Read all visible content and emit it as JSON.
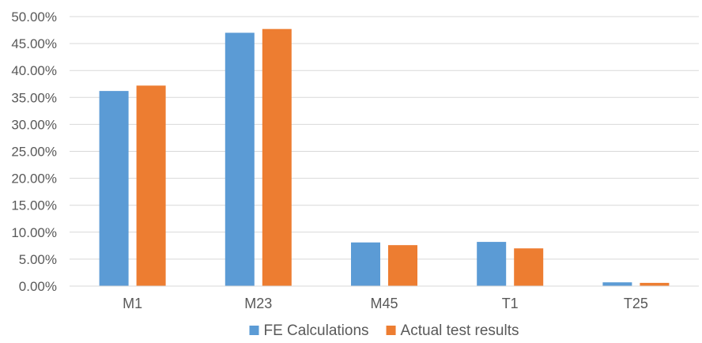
{
  "chart_data": {
    "type": "bar",
    "categories": [
      "M1",
      "M23",
      "M45",
      "T1",
      "T25"
    ],
    "series": [
      {
        "name": "FE Calculations",
        "color": "#5b9bd5",
        "values": [
          36.2,
          47.0,
          8.1,
          8.2,
          0.7
        ]
      },
      {
        "name": "Actual test results",
        "color": "#ed7d31",
        "values": [
          37.2,
          47.7,
          7.6,
          7.0,
          0.6
        ]
      }
    ],
    "y_ticks": [
      "0.00%",
      "5.00%",
      "10.00%",
      "15.00%",
      "20.00%",
      "25.00%",
      "30.00%",
      "35.00%",
      "40.00%",
      "45.00%",
      "50.00%"
    ],
    "ylim": [
      0,
      50
    ],
    "y_unit": "percent",
    "grid": true,
    "gridline_color": "#d9d9d9",
    "legend_position": "bottom"
  }
}
